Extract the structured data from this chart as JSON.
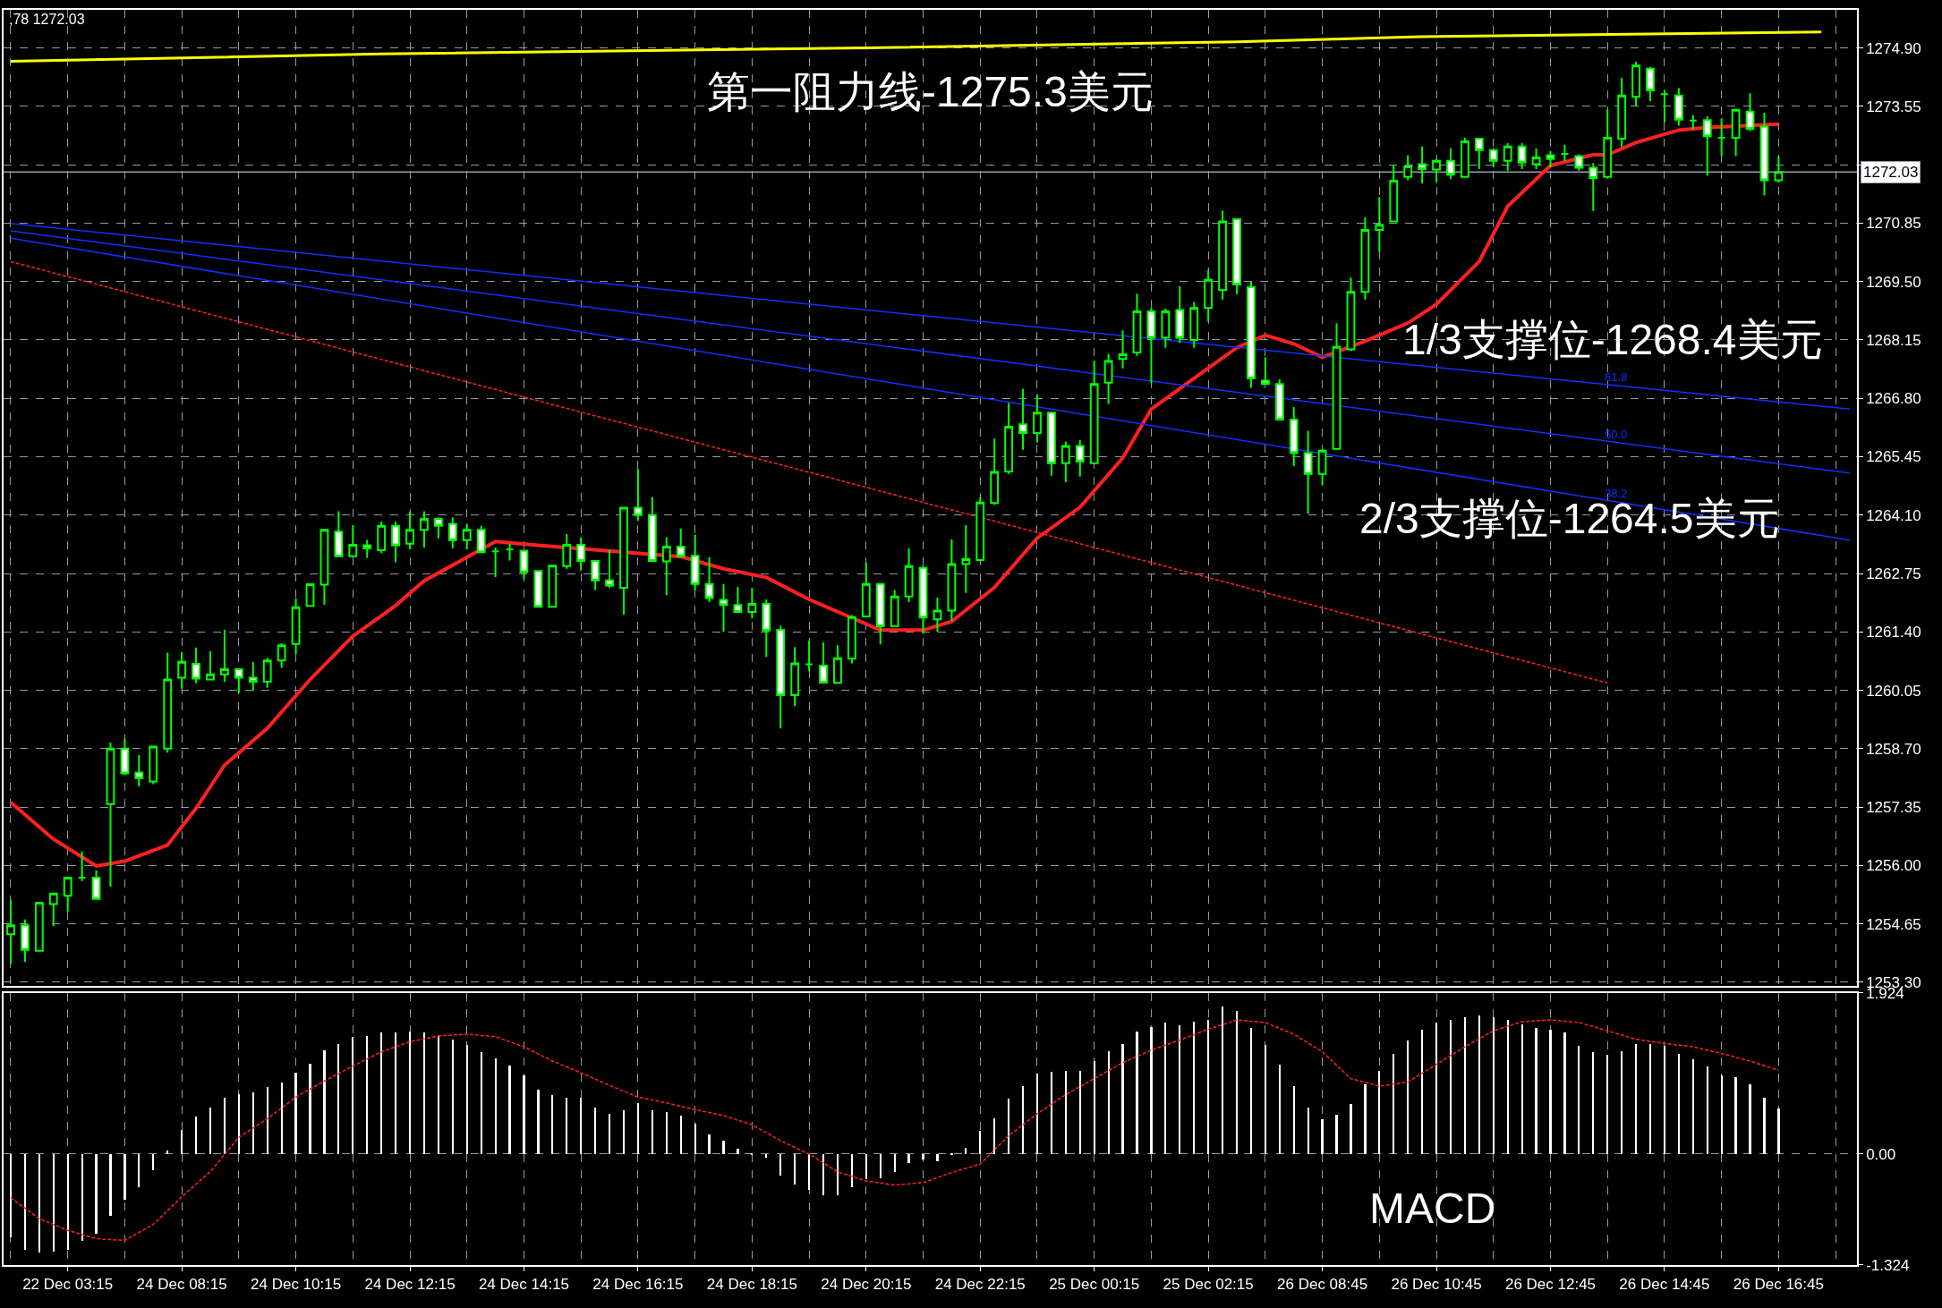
{
  "chart_data": [
    {
      "type": "candlestick",
      "color": "#00ff00",
      "categories": [
        null,
        null,
        null,
        null,
        "22 Dec 03:15",
        null,
        null,
        null,
        null,
        null,
        null,
        null,
        "24 Dec 08:15",
        null,
        null,
        null,
        null,
        null,
        null,
        null,
        "24 Dec 10:15",
        null,
        null,
        null,
        null,
        null,
        null,
        null,
        "24 Dec 12:15",
        null,
        null,
        null,
        null,
        null,
        null,
        null,
        "24 Dec 14:15",
        null,
        null,
        null,
        null,
        null,
        null,
        null,
        "24 Dec 16:15",
        null,
        null,
        null,
        null,
        null,
        null,
        null,
        "24 Dec 18:15",
        null,
        null,
        null,
        null,
        null,
        null,
        null,
        "24 Dec 20:15",
        null,
        null,
        null,
        null,
        null,
        null,
        null,
        "24 Dec 22:15",
        null,
        null,
        null,
        null,
        null,
        null,
        null,
        "25 Dec 00:15",
        null,
        null,
        null,
        null,
        null,
        null,
        null,
        "25 Dec 02:15",
        null,
        null,
        null,
        null,
        null,
        null,
        null,
        "26 Dec 08:45",
        null,
        null,
        null,
        null,
        null,
        null,
        null,
        "26 Dec 10:45",
        null,
        null,
        null,
        null,
        null,
        null,
        null,
        "26 Dec 12:45",
        null,
        null,
        null,
        null,
        null,
        null,
        null,
        "26 Dec 14:45",
        null,
        null,
        null,
        null,
        null,
        null,
        null,
        "26 Dec 16:45",
        null,
        null,
        null,
        null,
        null
      ],
      "ohlc": [
        [
          1254.41,
          1255.21,
          1253.73,
          1254.62
        ],
        [
          1254.62,
          1254.75,
          1253.77,
          1254.05
        ],
        [
          1254.03,
          1255.14,
          1254.03,
          1255.14
        ],
        [
          1255.11,
          1255.35,
          1254.6,
          1255.35
        ],
        [
          1255.3,
          1255.72,
          1254.93,
          1255.72
        ],
        [
          1255.72,
          1256.33,
          1255.64,
          1255.72
        ],
        [
          1255.72,
          1255.89,
          1255.23,
          1255.23
        ],
        [
          1257.42,
          1258.84,
          1255.51,
          1258.7
        ],
        [
          1258.7,
          1258.93,
          1258.09,
          1258.13
        ],
        [
          1258.15,
          1258.55,
          1257.83,
          1258.02
        ],
        [
          1257.94,
          1258.75,
          1257.88,
          1258.75
        ],
        [
          1258.7,
          1260.92,
          1258.61,
          1260.3
        ],
        [
          1260.34,
          1260.93,
          1260.09,
          1260.71
        ],
        [
          1260.66,
          1261.04,
          1260.21,
          1260.32
        ],
        [
          1260.3,
          1260.95,
          1260.3,
          1260.42
        ],
        [
          1260.42,
          1261.45,
          1260.25,
          1260.54
        ],
        [
          1260.54,
          1260.54,
          1259.99,
          1260.34
        ],
        [
          1260.34,
          1260.71,
          1260.04,
          1260.25
        ],
        [
          1260.25,
          1260.8,
          1260.11,
          1260.74
        ],
        [
          1260.74,
          1261.14,
          1260.57,
          1261.09
        ],
        [
          1261.12,
          1262.17,
          1260.89,
          1261.97
        ],
        [
          1262.0,
          1262.5,
          1262.0,
          1262.5
        ],
        [
          1262.49,
          1263.76,
          1262.03,
          1263.76
        ],
        [
          1263.72,
          1264.19,
          1263.15,
          1263.15
        ],
        [
          1263.15,
          1263.87,
          1263.15,
          1263.41
        ],
        [
          1263.4,
          1263.53,
          1263.11,
          1263.33
        ],
        [
          1263.29,
          1263.95,
          1263.22,
          1263.85
        ],
        [
          1263.85,
          1263.95,
          1263.01,
          1263.4
        ],
        [
          1263.44,
          1264.19,
          1263.31,
          1263.76
        ],
        [
          1263.76,
          1264.19,
          1263.35,
          1264.01
        ],
        [
          1264.01,
          1264.05,
          1263.56,
          1263.85
        ],
        [
          1263.9,
          1264.05,
          1263.33,
          1263.52
        ],
        [
          1263.52,
          1263.9,
          1263.31,
          1263.76
        ],
        [
          1263.76,
          1263.85,
          1263.24,
          1263.24
        ],
        [
          1263.26,
          1263.35,
          1262.67,
          1263.26
        ],
        [
          1263.31,
          1263.44,
          1263.05,
          1263.31
        ],
        [
          1263.28,
          1263.28,
          1262.62,
          1262.78
        ],
        [
          1262.81,
          1262.81,
          1261.98,
          1261.98
        ],
        [
          1261.98,
          1262.93,
          1261.98,
          1262.93
        ],
        [
          1262.92,
          1263.66,
          1262.86,
          1263.41
        ],
        [
          1263.41,
          1263.59,
          1262.82,
          1263.04
        ],
        [
          1263.04,
          1263.04,
          1262.37,
          1262.59
        ],
        [
          1262.59,
          1263.3,
          1262.42,
          1262.47
        ],
        [
          1262.42,
          1264.27,
          1261.8,
          1264.27
        ],
        [
          1264.27,
          1265.17,
          1263.97,
          1264.1
        ],
        [
          1264.1,
          1264.52,
          1263.04,
          1263.04
        ],
        [
          1263.03,
          1263.59,
          1262.25,
          1263.37
        ],
        [
          1263.37,
          1263.79,
          1263.15,
          1263.15
        ],
        [
          1263.16,
          1263.65,
          1262.35,
          1262.51
        ],
        [
          1262.51,
          1263.13,
          1262.09,
          1262.18
        ],
        [
          1262.14,
          1262.51,
          1261.4,
          1262.02
        ],
        [
          1262.02,
          1262.44,
          1261.86,
          1261.86
        ],
        [
          1261.86,
          1262.42,
          1261.71,
          1262.05
        ],
        [
          1262.05,
          1262.15,
          1260.82,
          1261.43
        ],
        [
          1261.45,
          1261.54,
          1259.17,
          1259.94
        ],
        [
          1259.94,
          1261.05,
          1259.68,
          1260.67
        ],
        [
          1260.65,
          1261.2,
          1260.49,
          1260.65
        ],
        [
          1260.62,
          1261.16,
          1260.23,
          1260.23
        ],
        [
          1260.22,
          1261.09,
          1260.22,
          1260.79
        ],
        [
          1260.78,
          1261.79,
          1260.67,
          1261.74
        ],
        [
          1261.76,
          1263.0,
          1261.76,
          1262.51
        ],
        [
          1262.51,
          1262.51,
          1261.11,
          1261.53
        ],
        [
          1261.53,
          1262.37,
          1261.53,
          1262.22
        ],
        [
          1262.22,
          1263.33,
          1262.09,
          1262.92
        ],
        [
          1262.88,
          1262.93,
          1261.36,
          1261.73
        ],
        [
          1261.69,
          1262.19,
          1261.4,
          1261.89
        ],
        [
          1261.89,
          1263.54,
          1261.65,
          1262.97
        ],
        [
          1262.97,
          1263.87,
          1262.3,
          1263.08
        ],
        [
          1263.06,
          1264.52,
          1263.03,
          1264.39
        ],
        [
          1264.38,
          1265.87,
          1264.34,
          1265.1
        ],
        [
          1265.11,
          1266.69,
          1265.05,
          1266.14
        ],
        [
          1266.2,
          1267.02,
          1265.61,
          1266.0
        ],
        [
          1266.0,
          1266.89,
          1265.78,
          1266.47
        ],
        [
          1266.47,
          1266.47,
          1265.01,
          1265.3
        ],
        [
          1265.3,
          1265.8,
          1264.86,
          1265.7
        ],
        [
          1265.7,
          1265.83,
          1264.99,
          1265.34
        ],
        [
          1265.3,
          1267.67,
          1265.3,
          1267.13
        ],
        [
          1267.16,
          1267.83,
          1266.67,
          1267.66
        ],
        [
          1267.71,
          1268.37,
          1267.49,
          1267.82
        ],
        [
          1267.86,
          1269.22,
          1267.78,
          1268.81
        ],
        [
          1268.81,
          1268.89,
          1267.16,
          1268.2
        ],
        [
          1268.2,
          1268.88,
          1267.97,
          1268.81
        ],
        [
          1268.84,
          1269.39,
          1268.08,
          1268.2
        ],
        [
          1268.15,
          1269.03,
          1267.97,
          1268.89
        ],
        [
          1268.89,
          1269.77,
          1268.57,
          1269.54
        ],
        [
          1269.3,
          1271.14,
          1269.08,
          1270.89
        ],
        [
          1270.94,
          1270.94,
          1269.21,
          1269.43
        ],
        [
          1269.37,
          1269.5,
          1267.04,
          1267.26
        ],
        [
          1267.21,
          1267.75,
          1267.13,
          1267.13
        ],
        [
          1267.13,
          1267.24,
          1266.31,
          1266.31
        ],
        [
          1266.31,
          1266.6,
          1265.23,
          1265.54
        ],
        [
          1265.53,
          1266.05,
          1264.13,
          1265.05
        ],
        [
          1265.05,
          1265.63,
          1264.79,
          1265.59
        ],
        [
          1265.63,
          1268.53,
          1265.63,
          1267.99
        ],
        [
          1267.93,
          1269.59,
          1267.89,
          1269.26
        ],
        [
          1269.26,
          1270.98,
          1269.08,
          1270.69
        ],
        [
          1270.69,
          1271.45,
          1270.19,
          1270.81
        ],
        [
          1270.89,
          1272.2,
          1270.89,
          1271.83
        ],
        [
          1271.92,
          1272.42,
          1271.84,
          1272.16
        ],
        [
          1272.21,
          1272.62,
          1271.77,
          1272.1
        ],
        [
          1272.09,
          1272.34,
          1271.79,
          1272.29
        ],
        [
          1272.29,
          1272.58,
          1271.87,
          1271.97
        ],
        [
          1271.92,
          1272.82,
          1271.92,
          1272.74
        ],
        [
          1272.8,
          1272.8,
          1272.1,
          1272.54
        ],
        [
          1272.54,
          1272.58,
          1272.14,
          1272.29
        ],
        [
          1272.29,
          1272.7,
          1272.06,
          1272.62
        ],
        [
          1272.62,
          1272.7,
          1272.1,
          1272.25
        ],
        [
          1272.21,
          1272.58,
          1272.1,
          1272.37
        ],
        [
          1272.42,
          1272.52,
          1272.14,
          1272.33
        ],
        [
          1272.45,
          1272.66,
          1272.29,
          1272.45
        ],
        [
          1272.4,
          1272.44,
          1272.06,
          1272.13
        ],
        [
          1272.13,
          1272.24,
          1271.13,
          1271.89
        ],
        [
          1271.92,
          1273.48,
          1271.92,
          1272.82
        ],
        [
          1272.8,
          1274.21,
          1272.61,
          1273.8
        ],
        [
          1273.77,
          1274.58,
          1273.55,
          1274.49
        ],
        [
          1274.42,
          1274.46,
          1273.67,
          1273.92
        ],
        [
          1273.83,
          1273.93,
          1273.18,
          1273.83
        ],
        [
          1273.8,
          1273.97,
          1273.1,
          1273.24
        ],
        [
          1273.22,
          1273.35,
          1273.02,
          1273.22
        ],
        [
          1273.23,
          1273.32,
          1271.95,
          1272.86
        ],
        [
          1272.82,
          1273.27,
          1272.4,
          1272.82
        ],
        [
          1272.82,
          1273.47,
          1272.4,
          1273.47
        ],
        [
          1273.43,
          1273.85,
          1272.98,
          1273.03
        ],
        [
          1273.08,
          1273.4,
          1271.49,
          1271.84
        ],
        [
          1271.84,
          1272.4,
          1271.79,
          1272.03
        ],
        null,
        null,
        null,
        null,
        null
      ],
      "series": [
        {
          "type": "line",
          "color": "#ff2020",
          "line_style": "solid",
          "values": [
            1257.46,
            null,
            null,
            1256.61,
            null,
            null,
            1255.99,
            null,
            1256.1,
            null,
            null,
            1256.47,
            null,
            1257.32,
            null,
            1258.32,
            null,
            null,
            1259.17,
            null,
            null,
            1260.3,
            null,
            null,
            1261.3,
            null,
            null,
            1262.01,
            null,
            1262.58,
            null,
            null,
            null,
            null,
            1263.49,
            null,
            null,
            1263.4,
            null,
            null,
            null,
            null,
            null,
            null,
            null,
            null,
            null,
            1263.14,
            null,
            null,
            1262.86,
            null,
            null,
            1262.66,
            null,
            null,
            1262.15,
            null,
            null,
            null,
            null,
            1261.44,
            null,
            null,
            1261.44,
            null,
            1261.64,
            null,
            null,
            1262.43,
            null,
            null,
            1263.57,
            null,
            null,
            1264.28,
            null,
            null,
            1265.42,
            null,
            1266.55,
            null,
            null,
            1267.26,
            null,
            null,
            1267.97,
            null,
            1268.26,
            null,
            1268.06,
            null,
            1267.75,
            null,
            null,
            1268.12,
            null,
            null,
            1268.54,
            null,
            1268.97,
            null,
            null,
            1269.96,
            null,
            1271.24,
            null,
            null,
            1272.18,
            null,
            null,
            1272.43,
            1272.43,
            null,
            1272.71,
            null,
            null,
            1273.0,
            null,
            1273.06,
            null,
            null,
            null,
            null,
            1273.14,
            null,
            null,
            null,
            null,
            null
          ]
        },
        {
          "type": "line",
          "color": "#ffff00",
          "line_style": "solid",
          "values": [
            1274.59,
            null,
            null,
            null,
            null,
            null,
            null,
            null,
            null,
            null,
            null,
            null,
            null,
            null,
            null,
            null,
            null,
            null,
            null,
            null,
            null,
            null,
            null,
            null,
            null,
            null,
            1274.76,
            null,
            null,
            null,
            null,
            null,
            null,
            null,
            null,
            null,
            null,
            null,
            null,
            null,
            null,
            null,
            null,
            null,
            null,
            null,
            null,
            null,
            null,
            null,
            null,
            null,
            null,
            null,
            null,
            null,
            null,
            null,
            null,
            null,
            1274.9,
            null,
            null,
            null,
            null,
            null,
            null,
            null,
            null,
            null,
            null,
            null,
            null,
            null,
            null,
            null,
            null,
            null,
            null,
            null,
            null,
            null,
            null,
            null,
            null,
            null,
            1275.04,
            null,
            null,
            null,
            null,
            null,
            null,
            null,
            null,
            null,
            null,
            null,
            null,
            1275.16,
            null,
            null,
            null,
            null,
            null,
            null,
            null,
            null,
            null,
            null,
            null,
            null,
            null,
            null,
            null,
            null,
            null,
            null,
            null,
            null,
            null,
            null,
            null,
            null,
            null,
            null,
            null,
            1275.27,
            null,
            null
          ]
        },
        {
          "type": "line",
          "name": "61.8",
          "color": "#1030ff",
          "line_style": "solid",
          "values": [
            1270.84,
            null,
            null,
            null,
            null,
            null,
            null,
            null,
            null,
            null,
            null,
            null,
            null,
            null,
            null,
            null,
            null,
            null,
            null,
            null,
            null,
            null,
            null,
            null,
            null,
            null,
            null,
            null,
            null,
            null,
            null,
            null,
            null,
            null,
            null,
            null,
            null,
            null,
            null,
            null,
            null,
            null,
            null,
            null,
            null,
            null,
            null,
            null,
            null,
            null,
            null,
            null,
            null,
            null,
            null,
            null,
            null,
            null,
            null,
            null,
            null,
            null,
            null,
            null,
            null,
            null,
            null,
            null,
            null,
            null,
            null,
            null,
            null,
            null,
            null,
            null,
            null,
            null,
            null,
            null,
            null,
            null,
            null,
            null,
            null,
            null,
            null,
            null,
            null,
            null,
            null,
            null,
            null,
            null,
            null,
            null,
            null,
            null,
            null,
            null,
            null,
            null,
            null,
            null,
            null,
            null,
            null,
            null,
            null,
            null,
            null,
            null,
            null,
            null,
            null,
            null,
            null,
            null,
            null,
            null,
            null,
            null,
            null,
            null,
            null,
            null,
            null,
            null,
            null,
            1266.55
          ]
        },
        {
          "type": "line",
          "name": "50.0",
          "color": "#1030ff",
          "line_style": "solid",
          "values": [
            1270.67,
            null,
            null,
            null,
            null,
            null,
            null,
            null,
            null,
            null,
            null,
            null,
            null,
            null,
            null,
            null,
            null,
            null,
            null,
            null,
            null,
            null,
            null,
            null,
            null,
            null,
            null,
            null,
            null,
            null,
            null,
            null,
            null,
            null,
            null,
            null,
            null,
            null,
            null,
            null,
            null,
            null,
            null,
            null,
            null,
            null,
            null,
            null,
            null,
            null,
            null,
            null,
            null,
            null,
            null,
            null,
            null,
            null,
            null,
            null,
            null,
            null,
            null,
            null,
            null,
            null,
            null,
            null,
            null,
            null,
            null,
            null,
            null,
            null,
            null,
            null,
            null,
            null,
            null,
            null,
            null,
            null,
            null,
            null,
            null,
            null,
            null,
            null,
            null,
            null,
            null,
            null,
            null,
            null,
            null,
            null,
            null,
            null,
            null,
            null,
            null,
            null,
            null,
            null,
            null,
            null,
            null,
            null,
            null,
            null,
            null,
            null,
            null,
            null,
            null,
            null,
            null,
            null,
            null,
            null,
            null,
            null,
            null,
            null,
            null,
            null,
            null,
            null,
            null,
            1265.07
          ]
        },
        {
          "type": "line",
          "name": "38.2",
          "color": "#1030ff",
          "line_style": "solid",
          "values": [
            1270.5,
            null,
            null,
            null,
            null,
            null,
            null,
            null,
            null,
            null,
            null,
            null,
            null,
            null,
            null,
            null,
            null,
            null,
            null,
            null,
            null,
            null,
            null,
            null,
            null,
            null,
            null,
            null,
            null,
            null,
            null,
            null,
            null,
            null,
            null,
            null,
            null,
            null,
            null,
            null,
            null,
            null,
            null,
            null,
            null,
            null,
            null,
            null,
            null,
            null,
            null,
            null,
            null,
            null,
            null,
            null,
            null,
            null,
            null,
            null,
            null,
            null,
            null,
            null,
            null,
            null,
            null,
            null,
            null,
            null,
            null,
            null,
            null,
            null,
            null,
            null,
            null,
            null,
            null,
            null,
            null,
            null,
            null,
            null,
            null,
            null,
            null,
            null,
            null,
            null,
            null,
            null,
            null,
            null,
            null,
            null,
            null,
            null,
            null,
            null,
            null,
            null,
            null,
            null,
            null,
            null,
            null,
            null,
            null,
            null,
            null,
            null,
            null,
            null,
            null,
            null,
            null,
            null,
            null,
            null,
            null,
            null,
            null,
            null,
            null,
            null,
            null,
            null,
            null,
            1263.52
          ]
        },
        {
          "type": "line",
          "color": "#ff2020",
          "line_style": "dashed",
          "values": [
            1269.96,
            null,
            null,
            null,
            null,
            null,
            null,
            null,
            null,
            null,
            null,
            null,
            null,
            null,
            null,
            null,
            null,
            null,
            null,
            null,
            null,
            null,
            null,
            null,
            null,
            null,
            null,
            null,
            null,
            null,
            null,
            null,
            null,
            null,
            null,
            null,
            null,
            null,
            null,
            null,
            null,
            null,
            null,
            null,
            null,
            null,
            null,
            null,
            null,
            null,
            null,
            null,
            null,
            null,
            null,
            null,
            null,
            null,
            null,
            null,
            null,
            null,
            null,
            null,
            null,
            null,
            null,
            null,
            null,
            null,
            null,
            null,
            null,
            null,
            null,
            null,
            null,
            null,
            null,
            null,
            null,
            null,
            null,
            null,
            null,
            null,
            null,
            null,
            null,
            null,
            null,
            null,
            null,
            null,
            null,
            null,
            null,
            null,
            null,
            null,
            null,
            null,
            null,
            null,
            null,
            null,
            null,
            null,
            null,
            null,
            null,
            null,
            1260.22,
            null,
            null,
            null,
            null,
            null,
            null,
            null,
            null,
            null,
            null,
            null,
            null,
            null,
            null,
            null,
            null,
            null
          ]
        }
      ],
      "ylim": [
        1253.22,
        1275.78
      ],
      "yticks": [
        {
          "value": 1253.3,
          "label": "1253.30"
        },
        {
          "value": 1254.65,
          "label": "1254.65"
        },
        {
          "value": 1256.0,
          "label": "1256.00"
        },
        {
          "value": 1257.35,
          "label": "1257.35"
        },
        {
          "value": 1258.7,
          "label": "1258.70"
        },
        {
          "value": 1260.05,
          "label": "1260.05"
        },
        {
          "value": 1261.4,
          "label": "1261.40"
        },
        {
          "value": 1262.75,
          "label": "1262.75"
        },
        {
          "value": 1264.1,
          "label": "1264.10"
        },
        {
          "value": 1265.45,
          "label": "1265.45"
        },
        {
          "value": 1266.8,
          "label": "1266.80"
        },
        {
          "value": 1268.15,
          "label": "1268.15"
        },
        {
          "value": 1269.5,
          "label": "1269.50"
        },
        {
          "value": 1270.85,
          "label": "1270.85"
        },
        {
          "value": 1272.2,
          "label": null
        },
        {
          "value": 1273.55,
          "label": "1273.55"
        },
        {
          "value": 1274.9,
          "label": "1274.90"
        }
      ],
      "ref_lines": [
        {
          "axis": "y",
          "value": 1272.03,
          "label": "1272.03",
          "color": "#8c9db0"
        }
      ],
      "annotations": [
        ",78 1272.03",
        "第一阻力线-1275.3美元",
        "1/3支撑位-1268.4美元",
        "2/3支撑位-1264.5美元"
      ],
      "grid": true,
      "tick_labels": "y"
    },
    {
      "type": "bar",
      "color": "#ffffff",
      "categories": [
        null,
        null,
        null,
        null,
        "22 Dec 03:15",
        null,
        null,
        null,
        null,
        null,
        null,
        null,
        "24 Dec 08:15",
        null,
        null,
        null,
        null,
        null,
        null,
        null,
        "24 Dec 10:15",
        null,
        null,
        null,
        null,
        null,
        null,
        null,
        "24 Dec 12:15",
        null,
        null,
        null,
        null,
        null,
        null,
        null,
        "24 Dec 14:15",
        null,
        null,
        null,
        null,
        null,
        null,
        null,
        "24 Dec 16:15",
        null,
        null,
        null,
        null,
        null,
        null,
        null,
        "24 Dec 18:15",
        null,
        null,
        null,
        null,
        null,
        null,
        null,
        "24 Dec 20:15",
        null,
        null,
        null,
        null,
        null,
        null,
        null,
        "24 Dec 22:15",
        null,
        null,
        null,
        null,
        null,
        null,
        null,
        "25 Dec 00:15",
        null,
        null,
        null,
        null,
        null,
        null,
        null,
        "25 Dec 02:15",
        null,
        null,
        null,
        null,
        null,
        null,
        null,
        "26 Dec 08:45",
        null,
        null,
        null,
        null,
        null,
        null,
        null,
        "26 Dec 10:45",
        null,
        null,
        null,
        null,
        null,
        null,
        null,
        "26 Dec 12:45",
        null,
        null,
        null,
        null,
        null,
        null,
        null,
        "26 Dec 14:45",
        null,
        null,
        null,
        null,
        null,
        null,
        null,
        "26 Dec 16:45",
        null,
        null,
        null,
        null,
        null
      ],
      "values": [
        -0.99,
        -1.14,
        -1.17,
        -1.16,
        -1.14,
        -1.03,
        -0.95,
        -0.73,
        -0.54,
        -0.39,
        -0.19,
        0.05,
        0.29,
        0.45,
        0.56,
        0.67,
        0.72,
        0.74,
        0.8,
        0.86,
        0.97,
        1.08,
        1.24,
        1.32,
        1.4,
        1.41,
        1.45,
        1.45,
        1.46,
        1.45,
        1.41,
        1.37,
        1.3,
        1.22,
        1.14,
        1.06,
        0.94,
        0.77,
        0.71,
        0.68,
        0.68,
        0.56,
        0.48,
        0.53,
        0.61,
        0.53,
        0.5,
        0.46,
        0.37,
        0.24,
        0.16,
        0.07,
        0.01,
        -0.04,
        -0.25,
        -0.36,
        -0.42,
        -0.49,
        -0.49,
        -0.39,
        -0.3,
        -0.28,
        -0.21,
        -0.1,
        -0.06,
        -0.08,
        0.01,
        0.08,
        0.28,
        0.43,
        0.66,
        0.81,
        0.96,
        0.98,
        1.0,
        1.0,
        1.11,
        1.23,
        1.32,
        1.46,
        1.52,
        1.57,
        1.54,
        1.58,
        1.6,
        1.76,
        1.71,
        1.51,
        1.3,
        1.07,
        0.81,
        0.56,
        0.42,
        0.47,
        0.6,
        0.84,
        1.0,
        1.2,
        1.36,
        1.49,
        1.57,
        1.6,
        1.64,
        1.66,
        1.64,
        1.6,
        1.55,
        1.51,
        1.49,
        1.45,
        1.29,
        1.22,
        1.19,
        1.23,
        1.32,
        1.32,
        1.29,
        1.2,
        1.13,
        1.05,
        0.94,
        0.92,
        0.84,
        0.67,
        0.55,
        null,
        null,
        null,
        null,
        null
      ],
      "series": [
        {
          "type": "line",
          "color": "#ff2020",
          "line_style": "dashed",
          "values": [
            -0.52,
            null,
            -0.77,
            null,
            -0.91,
            null,
            -1.01,
            null,
            -1.03,
            null,
            -0.84,
            null,
            -0.51,
            null,
            -0.21,
            null,
            0.2,
            null,
            0.42,
            null,
            0.68,
            null,
            0.87,
            null,
            1.05,
            null,
            1.22,
            null,
            1.34,
            null,
            1.41,
            null,
            1.43,
            null,
            1.4,
            null,
            1.28,
            null,
            1.11,
            null,
            0.97,
            null,
            0.82,
            null,
            0.68,
            null,
            0.61,
            null,
            0.53,
            null,
            0.46,
            null,
            0.35,
            null,
            0.16,
            null,
            0.0,
            null,
            -0.21,
            null,
            -0.32,
            null,
            -0.37,
            null,
            -0.34,
            null,
            -0.22,
            null,
            -0.12,
            null,
            0.22,
            null,
            0.48,
            null,
            0.71,
            null,
            0.9,
            null,
            1.09,
            null,
            1.24,
            null,
            1.36,
            null,
            1.49,
            null,
            1.6,
            null,
            1.57,
            null,
            1.43,
            null,
            1.22,
            null,
            0.9,
            null,
            0.81,
            null,
            0.86,
            null,
            1.07,
            null,
            1.28,
            null,
            1.47,
            null,
            1.58,
            null,
            1.6,
            null,
            1.57,
            null,
            1.47,
            null,
            1.37,
            null,
            1.32,
            null,
            1.28,
            null,
            1.2,
            null,
            1.11,
            null,
            1.0,
            null,
            null,
            null,
            null,
            null
          ]
        }
      ],
      "ylim": [
        -1.324,
        1.924
      ],
      "yticks": [
        1.924,
        {
          "value": 0,
          "label": "0.00"
        },
        -1.324
      ],
      "annotations": [
        "MACD"
      ],
      "grid": true
    }
  ]
}
